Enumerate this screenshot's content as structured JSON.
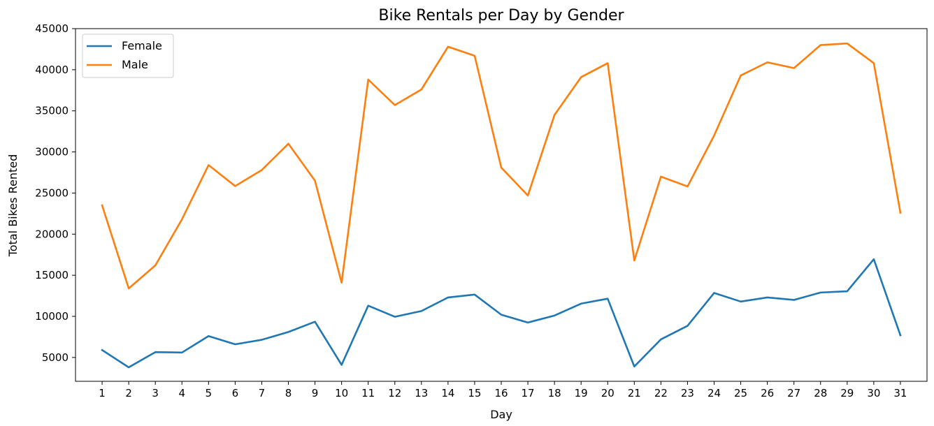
{
  "chart_data": {
    "type": "line",
    "title": "Bike Rentals per Day by Gender",
    "xlabel": "Day",
    "ylabel": "Total Bikes Rented",
    "x": [
      1,
      2,
      3,
      4,
      5,
      6,
      7,
      8,
      9,
      10,
      11,
      12,
      13,
      14,
      15,
      16,
      17,
      18,
      19,
      20,
      21,
      22,
      23,
      24,
      25,
      26,
      27,
      28,
      29,
      30,
      31
    ],
    "xlim": [
      0,
      32
    ],
    "ylim": [
      2100,
      45000
    ],
    "yticks": [
      5000,
      10000,
      15000,
      20000,
      25000,
      30000,
      35000,
      40000,
      45000
    ],
    "grid": false,
    "legend_position": "top-left",
    "series": [
      {
        "name": "Female",
        "color": "#1f77b4",
        "values": [
          5900,
          3800,
          5650,
          5600,
          7600,
          6600,
          7150,
          8100,
          9350,
          4100,
          11300,
          9950,
          10650,
          12300,
          12650,
          10200,
          9250,
          10100,
          11550,
          12150,
          3900,
          7200,
          8850,
          12850,
          11800,
          12300,
          12000,
          12900,
          13050,
          16950,
          7700
        ]
      },
      {
        "name": "Male",
        "color": "#ff7f0e",
        "values": [
          23500,
          13400,
          16200,
          21800,
          28400,
          25850,
          27800,
          31000,
          26500,
          14100,
          38800,
          35700,
          37600,
          42800,
          41700,
          28100,
          24700,
          34500,
          39100,
          40800,
          16800,
          27000,
          25800,
          32000,
          39300,
          40900,
          40200,
          43000,
          43200,
          40800,
          22600
        ]
      }
    ]
  }
}
